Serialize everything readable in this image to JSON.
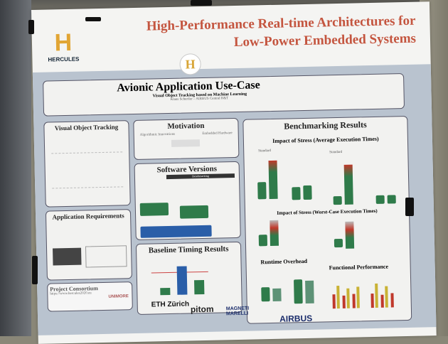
{
  "poster": {
    "title_line1": "High-Performance Real-time Architectures for",
    "title_line2": "Low-Power Embedded Systems",
    "logo_name": "HERCULES",
    "logo_letter": "H",
    "badge_letter": "H",
    "use_case": {
      "title": "Avionic Application Use-Case",
      "subtitle": "Visual Object Tracking based on Machine Learning",
      "author": "Klaus Schertler – AIRBUS Central R&T"
    },
    "sections": {
      "vot": "Visual Object Tracking",
      "motivation": "Motivation",
      "motivation_left": "Algorithmic Innovations",
      "motivation_right": "Embedded Hardware",
      "software": "Software Versions",
      "software_header": "Benchmarking",
      "app_req": "Application Requirements",
      "baseline": "Baseline Timing Results",
      "benchmarking": "Benchmarking Results",
      "stress_avg": "Impact of Stress (Average Execution Times)",
      "stress_wc": "Impact of Stress (Worst-Case Execution Times)",
      "standard": "Standard",
      "runtime": "Runtime Overhead",
      "functional": "Functional Performance",
      "consortium": "Project Consortium",
      "url": "https://www.hercules2020.eu"
    },
    "partners": [
      "UNIMORE",
      "ETH Zürich",
      "pitom",
      "MAGNETI MARELLI",
      "AIRBUS"
    ],
    "colors": {
      "title": "#c4553f",
      "accent": "#e1a534",
      "green": "#2f7b4a",
      "blue": "#2a5ea8",
      "red": "#c0392b"
    }
  }
}
